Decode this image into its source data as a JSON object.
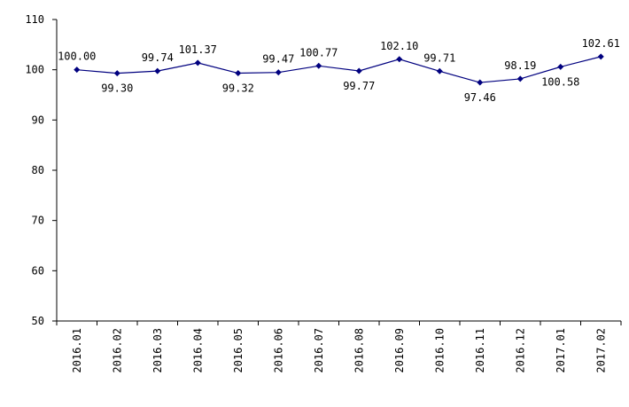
{
  "chart_data": {
    "type": "line",
    "categories": [
      "2016.01",
      "2016.02",
      "2016.03",
      "2016.04",
      "2016.05",
      "2016.06",
      "2016.07",
      "2016.08",
      "2016.09",
      "2016.10",
      "2016.11",
      "2016.12",
      "2017.01",
      "2017.02"
    ],
    "values": [
      100.0,
      99.3,
      99.74,
      101.37,
      99.32,
      99.47,
      100.77,
      99.77,
      102.1,
      99.71,
      97.46,
      98.19,
      100.58,
      102.61
    ],
    "labels": [
      "100.00",
      "99.30",
      "99.74",
      "101.37",
      "99.32",
      "99.47",
      "100.77",
      "99.77",
      "102.10",
      "99.71",
      "97.46",
      "98.19",
      "100.58",
      "102.61"
    ],
    "label_positions": [
      "above",
      "below",
      "above",
      "above",
      "below",
      "above",
      "above",
      "below",
      "above",
      "above",
      "below",
      "above",
      "below",
      "above"
    ],
    "ylim": [
      50,
      110
    ],
    "yticks": [
      "50",
      "60",
      "70",
      "80",
      "90",
      "100",
      "110"
    ],
    "grid": false,
    "line_color": "#00007f",
    "marker": "diamond"
  }
}
